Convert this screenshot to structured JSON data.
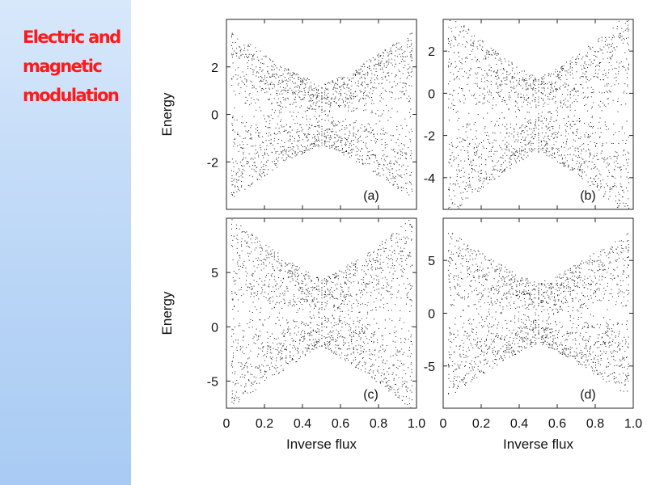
{
  "slide": {
    "title_lines": [
      "Electric and",
      "magnetic",
      "modulation"
    ],
    "title_color": "#ff1a1a"
  },
  "chart_data": [
    {
      "type": "scatter",
      "panel": "(a)",
      "xlabel": "",
      "ylabel": "Energy",
      "xlim": [
        0,
        1
      ],
      "ylim": [
        -4,
        4
      ],
      "yticks": [
        2,
        0,
        -2
      ],
      "xticks": []
    },
    {
      "type": "scatter",
      "panel": "(b)",
      "xlabel": "",
      "ylabel": "",
      "xlim": [
        0,
        1
      ],
      "ylim": [
        -5.5,
        3.5
      ],
      "yticks": [
        2,
        0,
        -2,
        -4
      ],
      "xticks": []
    },
    {
      "type": "scatter",
      "panel": "(c)",
      "xlabel": "Inverse flux",
      "ylabel": "Energy",
      "xlim": [
        0,
        1
      ],
      "ylim": [
        -7.5,
        10
      ],
      "yticks": [
        5,
        0,
        -5
      ],
      "xticks": [
        "0",
        "0.2",
        "0.4",
        "0.6",
        "0.8",
        "1.0"
      ]
    },
    {
      "type": "scatter",
      "panel": "(d)",
      "xlabel": "Inverse flux",
      "ylabel": "",
      "xlim": [
        0,
        1
      ],
      "ylim": [
        -9,
        9
      ],
      "yticks": [
        5,
        0,
        -5
      ],
      "xticks": [
        "0",
        "0.2",
        "0.4",
        "0.6",
        "0.8",
        "1.0"
      ]
    }
  ]
}
